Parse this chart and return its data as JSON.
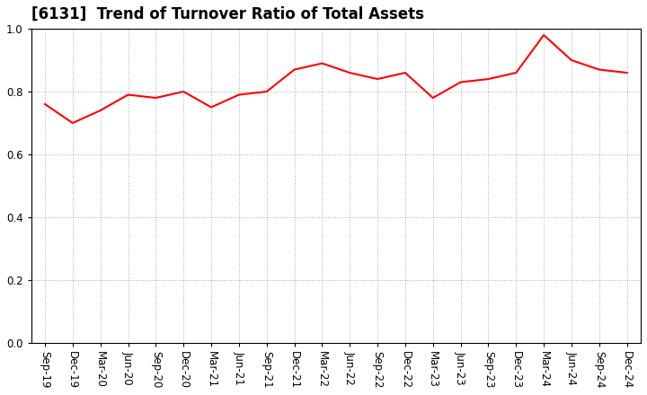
{
  "title": "[6131]  Trend of Turnover Ratio of Total Assets",
  "x_labels": [
    "Sep-19",
    "Dec-19",
    "Mar-20",
    "Jun-20",
    "Sep-20",
    "Dec-20",
    "Mar-21",
    "Jun-21",
    "Sep-21",
    "Dec-21",
    "Mar-22",
    "Jun-22",
    "Sep-22",
    "Dec-22",
    "Mar-23",
    "Jun-23",
    "Sep-23",
    "Dec-23",
    "Mar-24",
    "Jun-24",
    "Sep-24",
    "Dec-24"
  ],
  "y_values": [
    0.76,
    0.7,
    0.74,
    0.79,
    0.78,
    0.8,
    0.75,
    0.79,
    0.8,
    0.87,
    0.89,
    0.86,
    0.84,
    0.86,
    0.78,
    0.83,
    0.84,
    0.86,
    0.98,
    0.9,
    0.87,
    0.86
  ],
  "line_color": "#ff0000",
  "line_width": 1.5,
  "ylim": [
    0.0,
    1.0
  ],
  "yticks": [
    0.0,
    0.2,
    0.4,
    0.6,
    0.8,
    1.0
  ],
  "background_color": "#ffffff",
  "grid_color": "#aaaaaa",
  "title_fontsize": 12,
  "tick_fontsize": 8.5
}
